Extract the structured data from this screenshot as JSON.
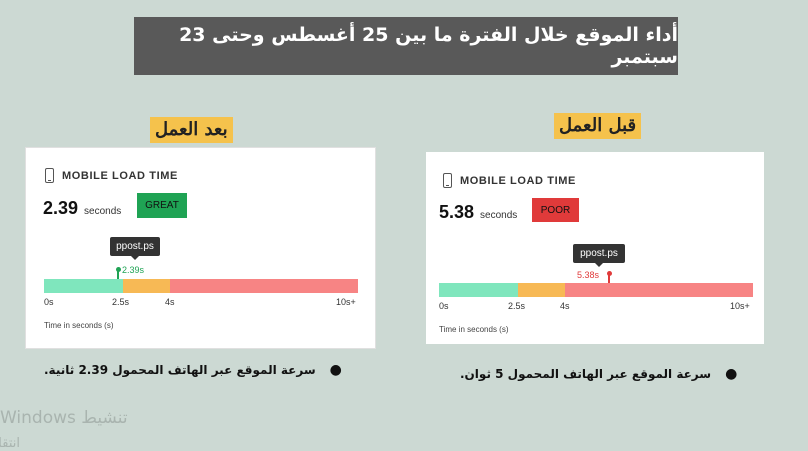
{
  "title": "أداء الموقع خلال الفترة ما بين 25 أغسطس وحتى 23 سبتمبر",
  "colors": {
    "great": "#1fa354",
    "poor": "#e03a3a",
    "seg_green": "#7fe6bd",
    "seg_orange": "#f7b955",
    "seg_red": "#f78484"
  },
  "panels": [
    {
      "label": "بعد العمل",
      "metric_label": "MOBILE LOAD TIME",
      "value": "2.39",
      "unit": "seconds",
      "badge": "GREAT",
      "tooltip": "ppost.ps",
      "marker_label": "2.39s",
      "marker_value": 2.39,
      "ticks": [
        "0s",
        "2.5s",
        "4s",
        "10s+"
      ],
      "axis_title": "Time in seconds (s)",
      "bullet": "سرعة الموقع عبر الهاتف المحمول 2.39 ثانية."
    },
    {
      "label": "قبل العمل",
      "metric_label": "MOBILE LOAD TIME",
      "value": "5.38",
      "unit": "seconds",
      "badge": "POOR",
      "tooltip": "ppost.ps",
      "marker_label": "5.38s",
      "marker_value": 5.38,
      "ticks": [
        "0s",
        "2.5s",
        "4s",
        "10s+"
      ],
      "axis_title": "Time in seconds (s)",
      "bullet": "سرعة الموقع عبر الهاتف المحمول 5 ثوان."
    }
  ],
  "watermark": {
    "line1": "تنشيط Windows",
    "line2": "انتقل إلى الإعدادات لتنشيط Windows."
  }
}
